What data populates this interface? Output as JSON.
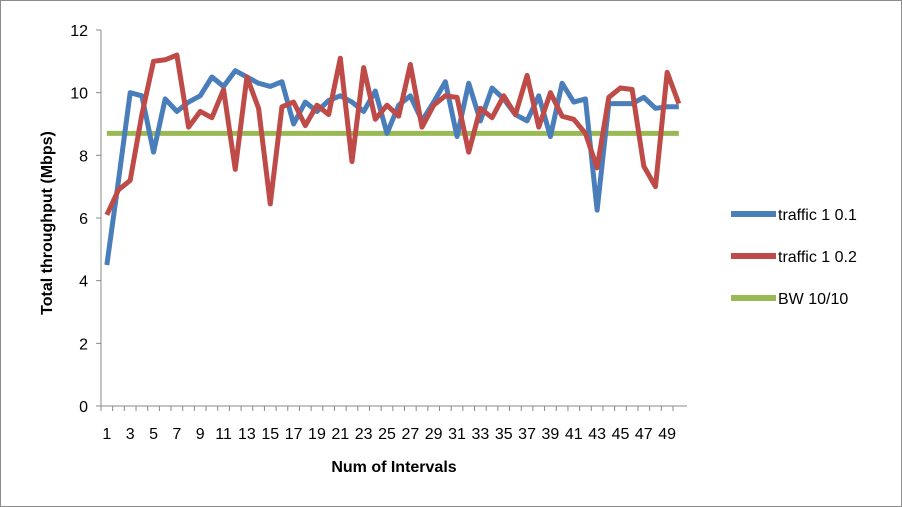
{
  "chart_data": {
    "type": "line",
    "title": "",
    "xlabel": "Num of Intervals",
    "ylabel": "Total throughput (Mbps)",
    "ylim": [
      0,
      12
    ],
    "yticks": [
      0,
      2,
      4,
      6,
      8,
      10,
      12
    ],
    "x": [
      1,
      2,
      3,
      4,
      5,
      6,
      7,
      8,
      9,
      10,
      11,
      12,
      13,
      14,
      15,
      16,
      17,
      18,
      19,
      20,
      21,
      22,
      23,
      24,
      25,
      26,
      27,
      28,
      29,
      30,
      31,
      32,
      33,
      34,
      35,
      36,
      37,
      38,
      39,
      40,
      41,
      42,
      43,
      44,
      45,
      46,
      47,
      48,
      49,
      50
    ],
    "xtick_labels": [
      "1",
      "3",
      "5",
      "7",
      "9",
      "11",
      "13",
      "15",
      "17",
      "19",
      "21",
      "23",
      "25",
      "27",
      "29",
      "31",
      "33",
      "35",
      "37",
      "39",
      "41",
      "43",
      "45",
      "47",
      "49"
    ],
    "grid": false,
    "legend_position": "right",
    "series": [
      {
        "name": "traffic 1 0.1",
        "color": "#4a7ebb",
        "values": [
          4.5,
          7.2,
          10.0,
          9.9,
          8.1,
          9.8,
          9.4,
          9.7,
          9.9,
          10.5,
          10.2,
          10.7,
          10.5,
          10.3,
          10.2,
          10.35,
          9.0,
          9.7,
          9.4,
          9.75,
          9.9,
          9.7,
          9.4,
          10.05,
          8.7,
          9.6,
          9.9,
          9.1,
          9.7,
          10.35,
          8.6,
          10.3,
          9.1,
          10.15,
          9.8,
          9.3,
          9.1,
          9.9,
          8.6,
          10.3,
          9.7,
          9.8,
          6.25,
          9.65,
          9.65,
          9.65,
          9.85,
          9.5,
          9.55,
          9.55
        ]
      },
      {
        "name": "traffic 1 0.2",
        "color": "#be4b48",
        "values": [
          6.1,
          6.9,
          7.2,
          9.3,
          11.0,
          11.05,
          11.2,
          8.9,
          9.4,
          9.2,
          10.1,
          7.55,
          10.5,
          9.5,
          6.45,
          9.55,
          9.7,
          8.95,
          9.6,
          9.3,
          11.1,
          7.8,
          10.8,
          9.15,
          9.6,
          9.25,
          10.9,
          8.9,
          9.6,
          9.9,
          9.85,
          8.1,
          9.5,
          9.2,
          9.9,
          9.3,
          10.55,
          8.9,
          10.0,
          9.25,
          9.15,
          8.7,
          7.6,
          9.85,
          10.15,
          10.1,
          7.65,
          7.0,
          10.65,
          9.65
        ]
      },
      {
        "name": "BW 10/10",
        "color": "#98b954",
        "values": [
          8.7,
          8.7,
          8.7,
          8.7,
          8.7,
          8.7,
          8.7,
          8.7,
          8.7,
          8.7,
          8.7,
          8.7,
          8.7,
          8.7,
          8.7,
          8.7,
          8.7,
          8.7,
          8.7,
          8.7,
          8.7,
          8.7,
          8.7,
          8.7,
          8.7,
          8.7,
          8.7,
          8.7,
          8.7,
          8.7,
          8.7,
          8.7,
          8.7,
          8.7,
          8.7,
          8.7,
          8.7,
          8.7,
          8.7,
          8.7,
          8.7,
          8.7,
          8.7,
          8.7,
          8.7,
          8.7,
          8.7,
          8.7,
          8.7,
          8.7
        ]
      }
    ]
  }
}
